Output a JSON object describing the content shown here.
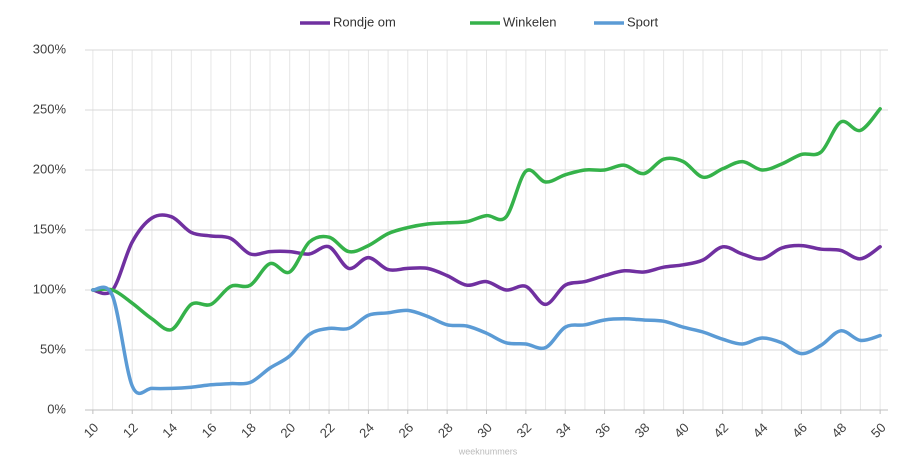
{
  "chart_data": {
    "type": "line",
    "x_label": "weeknummers",
    "x": [
      10,
      11,
      12,
      13,
      14,
      15,
      16,
      17,
      18,
      19,
      20,
      21,
      22,
      23,
      24,
      25,
      26,
      27,
      28,
      29,
      30,
      31,
      32,
      33,
      34,
      35,
      36,
      37,
      38,
      39,
      40,
      41,
      42,
      43,
      44,
      45,
      46,
      47,
      48,
      49,
      50
    ],
    "xlim": [
      9.6,
      50.4
    ],
    "xticks": [
      10,
      12,
      14,
      16,
      18,
      20,
      22,
      24,
      26,
      28,
      30,
      32,
      34,
      36,
      38,
      40,
      42,
      44,
      46,
      48,
      50
    ],
    "ylim": [
      0,
      300
    ],
    "yticks": [
      {
        "value": 0,
        "label": "0%"
      },
      {
        "value": 50,
        "label": "50%"
      },
      {
        "value": 100,
        "label": "100%"
      },
      {
        "value": 150,
        "label": "150%"
      },
      {
        "value": 200,
        "label": "200%"
      },
      {
        "value": 250,
        "label": "250%"
      },
      {
        "value": 300,
        "label": "300%"
      }
    ],
    "grid": true,
    "legend": "top",
    "series": [
      {
        "name": "Rondje om",
        "color": "#7030a0",
        "values": [
          100,
          100,
          140,
          160,
          161,
          148,
          145,
          143,
          130,
          132,
          132,
          130,
          136,
          118,
          127,
          117,
          118,
          118,
          112,
          104,
          107,
          100,
          103,
          88,
          104,
          107,
          112,
          116,
          115,
          119,
          121,
          125,
          136,
          130,
          126,
          135,
          137,
          134,
          133,
          126,
          136
        ]
      },
      {
        "name": "Winkelen",
        "color": "#35b24a",
        "values": [
          100,
          100,
          89,
          76,
          67,
          88,
          88,
          103,
          104,
          122,
          115,
          140,
          144,
          132,
          137,
          147,
          152,
          155,
          156,
          157,
          162,
          161,
          199,
          190,
          196,
          200,
          200,
          204,
          197,
          209,
          207,
          194,
          201,
          207,
          200,
          205,
          213,
          215,
          240,
          233,
          251
        ]
      },
      {
        "name": "Sport",
        "color": "#5b9bd5",
        "values": [
          100,
          95,
          20,
          18,
          18,
          19,
          21,
          22,
          23,
          35,
          45,
          63,
          68,
          68,
          79,
          81,
          83,
          78,
          71,
          70,
          64,
          56,
          55,
          52,
          69,
          71,
          75,
          76,
          75,
          74,
          69,
          65,
          59,
          55,
          60,
          56,
          47,
          54,
          66,
          58,
          62
        ]
      }
    ]
  }
}
